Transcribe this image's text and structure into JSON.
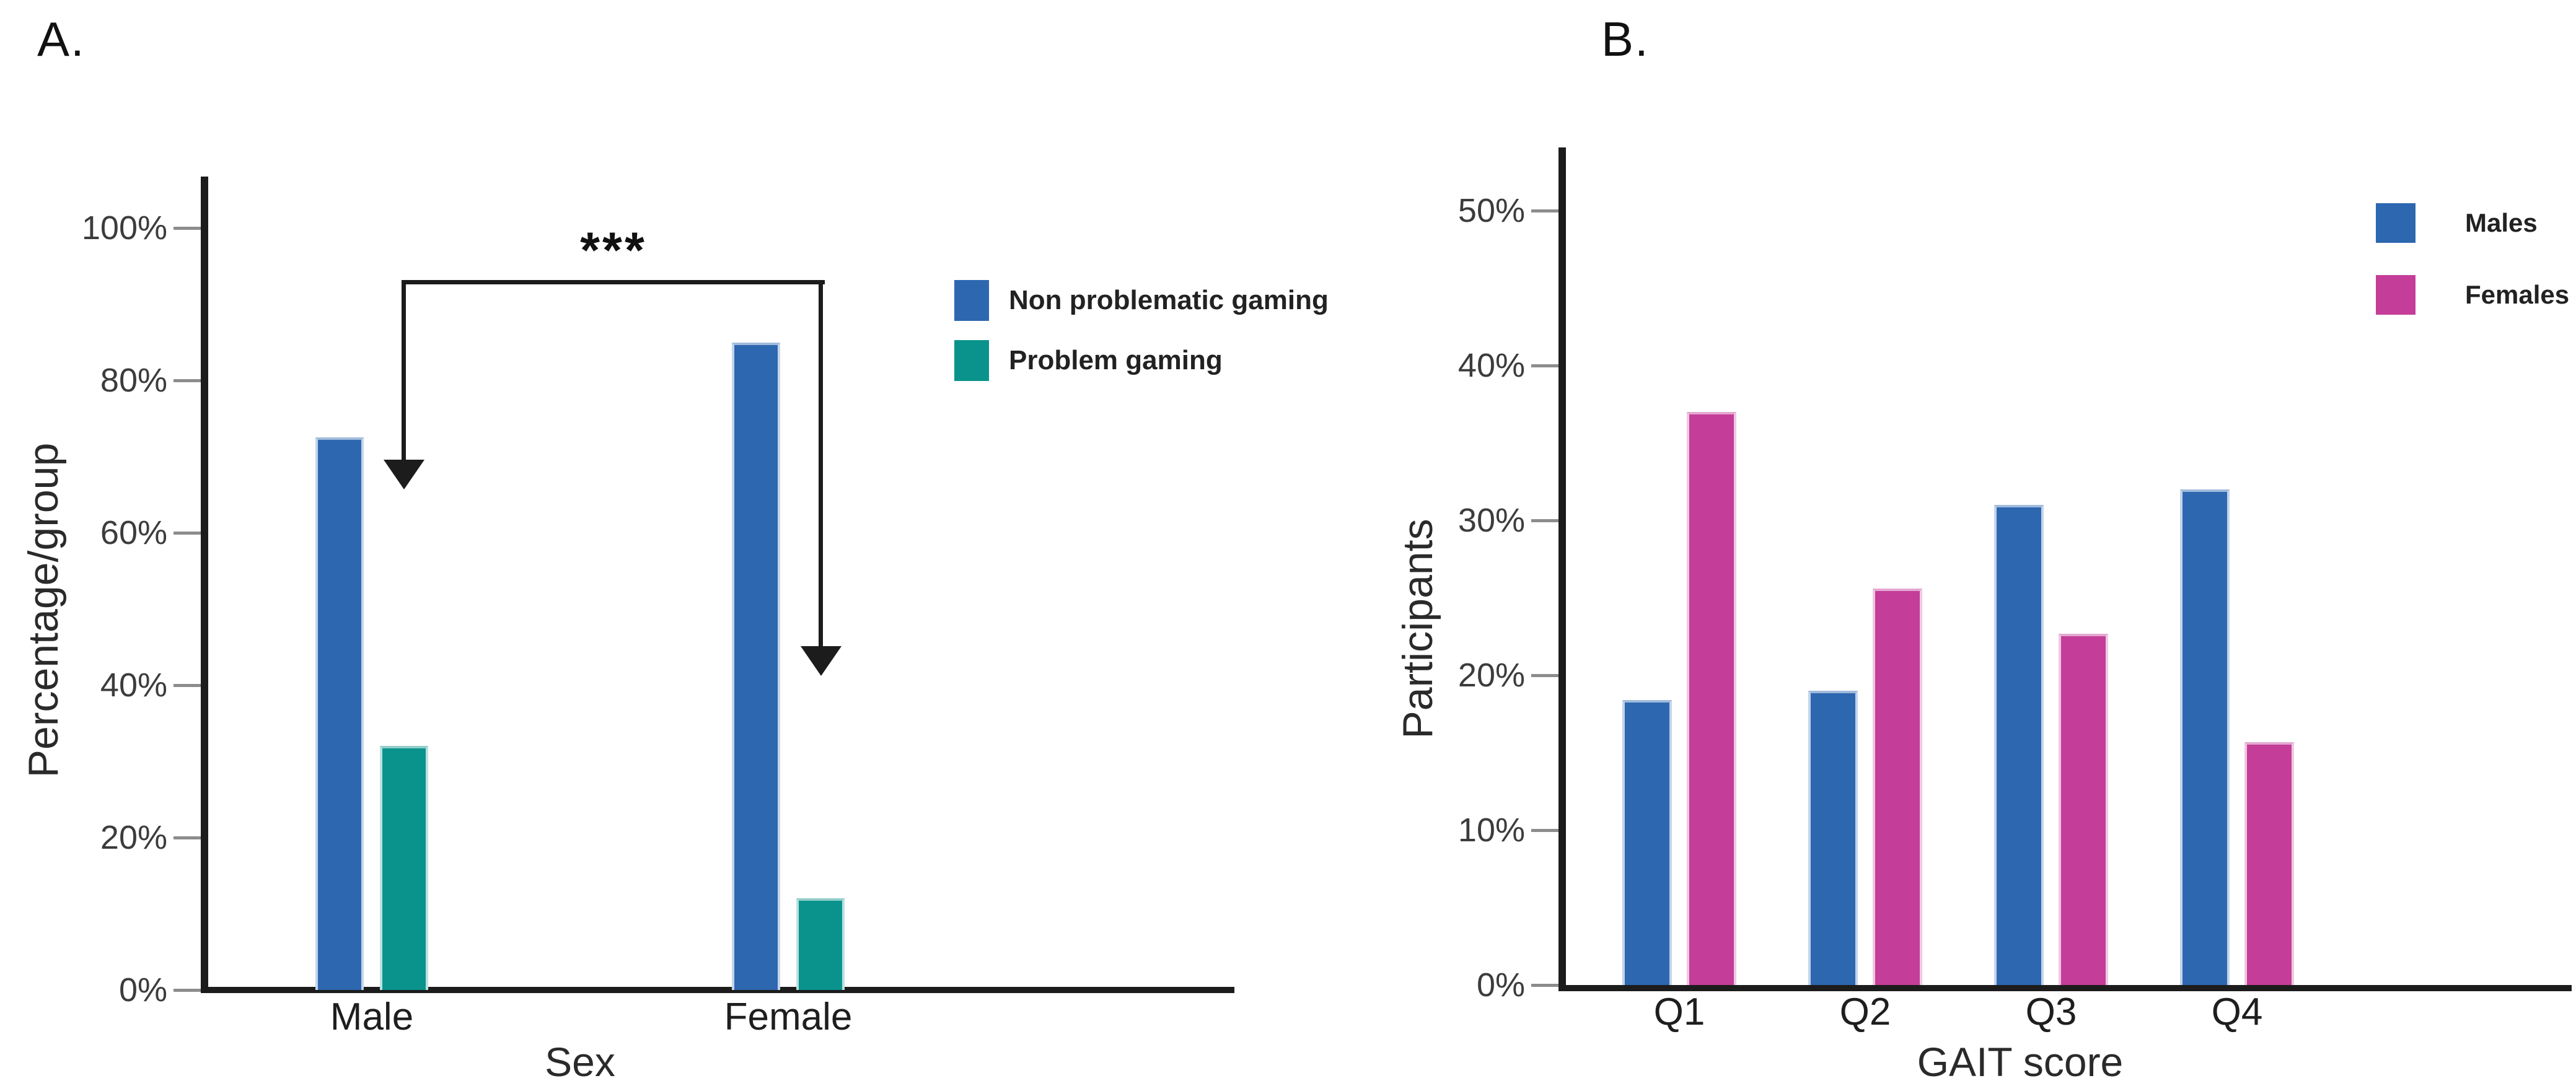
{
  "canvas_background": "#ffffff",
  "chart_data": [
    {
      "id": "panel_a",
      "type": "bar",
      "panel_label": "A.",
      "categories": [
        "Male",
        "Female"
      ],
      "series": [
        {
          "name": "Non problematic gaming",
          "color": "#2d67b0",
          "values": [
            72.5,
            85
          ]
        },
        {
          "name": "Problem gaming",
          "color": "#0a938c",
          "values": [
            32,
            12
          ]
        }
      ],
      "xlabel": "Sex",
      "ylabel": "Percentage/group",
      "ylim": [
        0,
        100
      ],
      "ytick_step": 20,
      "ytick_labels": [
        "0%",
        "20%",
        "40%",
        "60%",
        "80%",
        "100%"
      ],
      "grid": false,
      "legend_position": "right-of-plot",
      "annotation": {
        "text": "***",
        "style": "bracket-with-down-arrows",
        "spans": [
          "Male",
          "Female"
        ],
        "points_to": "Problem gaming bars"
      }
    },
    {
      "id": "panel_b",
      "type": "bar",
      "panel_label": "B.",
      "categories": [
        "Q1",
        "Q2",
        "Q3",
        "Q4"
      ],
      "series": [
        {
          "name": "Males",
          "color": "#2d67b0",
          "values": [
            18.4,
            19,
            31,
            32
          ]
        },
        {
          "name": "Females",
          "color": "#c43d98",
          "values": [
            37,
            25.6,
            22.7,
            15.7
          ]
        }
      ],
      "xlabel": "GAIT score",
      "ylabel": "Participants",
      "ylim": [
        0,
        50
      ],
      "ytick_step": 10,
      "ytick_labels": [
        "0%",
        "10%",
        "20%",
        "30%",
        "40%",
        "50%"
      ],
      "grid": false,
      "legend_position": "top-right"
    }
  ]
}
